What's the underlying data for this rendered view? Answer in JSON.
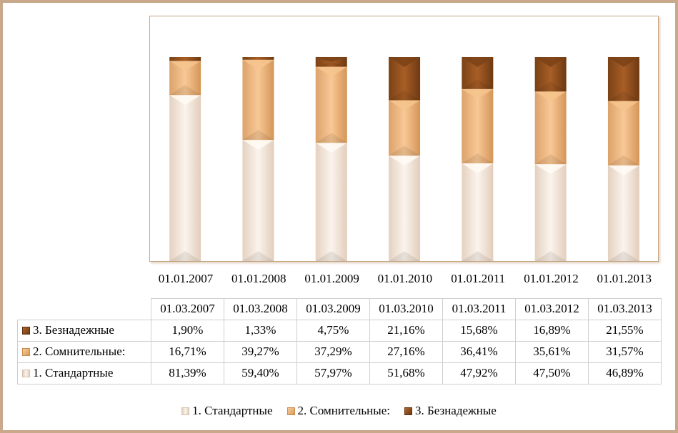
{
  "chart_data": {
    "type": "bar",
    "stacked": true,
    "percent_stacked": true,
    "categories": [
      "01.01.2007",
      "01.01.2008",
      "01.01.2009",
      "01.01.2010",
      "01.01.2011",
      "01.01.2012",
      "01.01.2013"
    ],
    "table_header": [
      "01.03.2007",
      "01.03.2008",
      "01.03.2009",
      "01.03.2010",
      "01.03.2011",
      "01.03.2012",
      "01.03.2013"
    ],
    "series": [
      {
        "name": "1.  Стандартные",
        "values": [
          81.39,
          59.4,
          57.97,
          51.68,
          47.92,
          47.5,
          46.89
        ],
        "labels": [
          "81,39%",
          "59,40%",
          "57,97%",
          "51,68%",
          "47,92%",
          "47,50%",
          "46,89%"
        ],
        "color": "#f3e4d6"
      },
      {
        "name": "2. Сомнительные:",
        "values": [
          16.71,
          39.27,
          37.29,
          27.16,
          36.41,
          35.61,
          31.57
        ],
        "labels": [
          "16,71%",
          "39,27%",
          "37,29%",
          "27,16%",
          "36,41%",
          "35,61%",
          "31,57%"
        ],
        "color": "#eab27a"
      },
      {
        "name": "3. Безнадежные",
        "values": [
          1.9,
          1.33,
          4.75,
          21.16,
          15.68,
          16.89,
          21.55
        ],
        "labels": [
          "1,90%",
          "1,33%",
          "4,75%",
          "21,16%",
          "15,68%",
          "16,89%",
          "21,55%"
        ],
        "color": "#9a5520"
      }
    ],
    "ylim": [
      0,
      100
    ],
    "grid": false,
    "legend_position": "bottom",
    "data_table": true
  }
}
